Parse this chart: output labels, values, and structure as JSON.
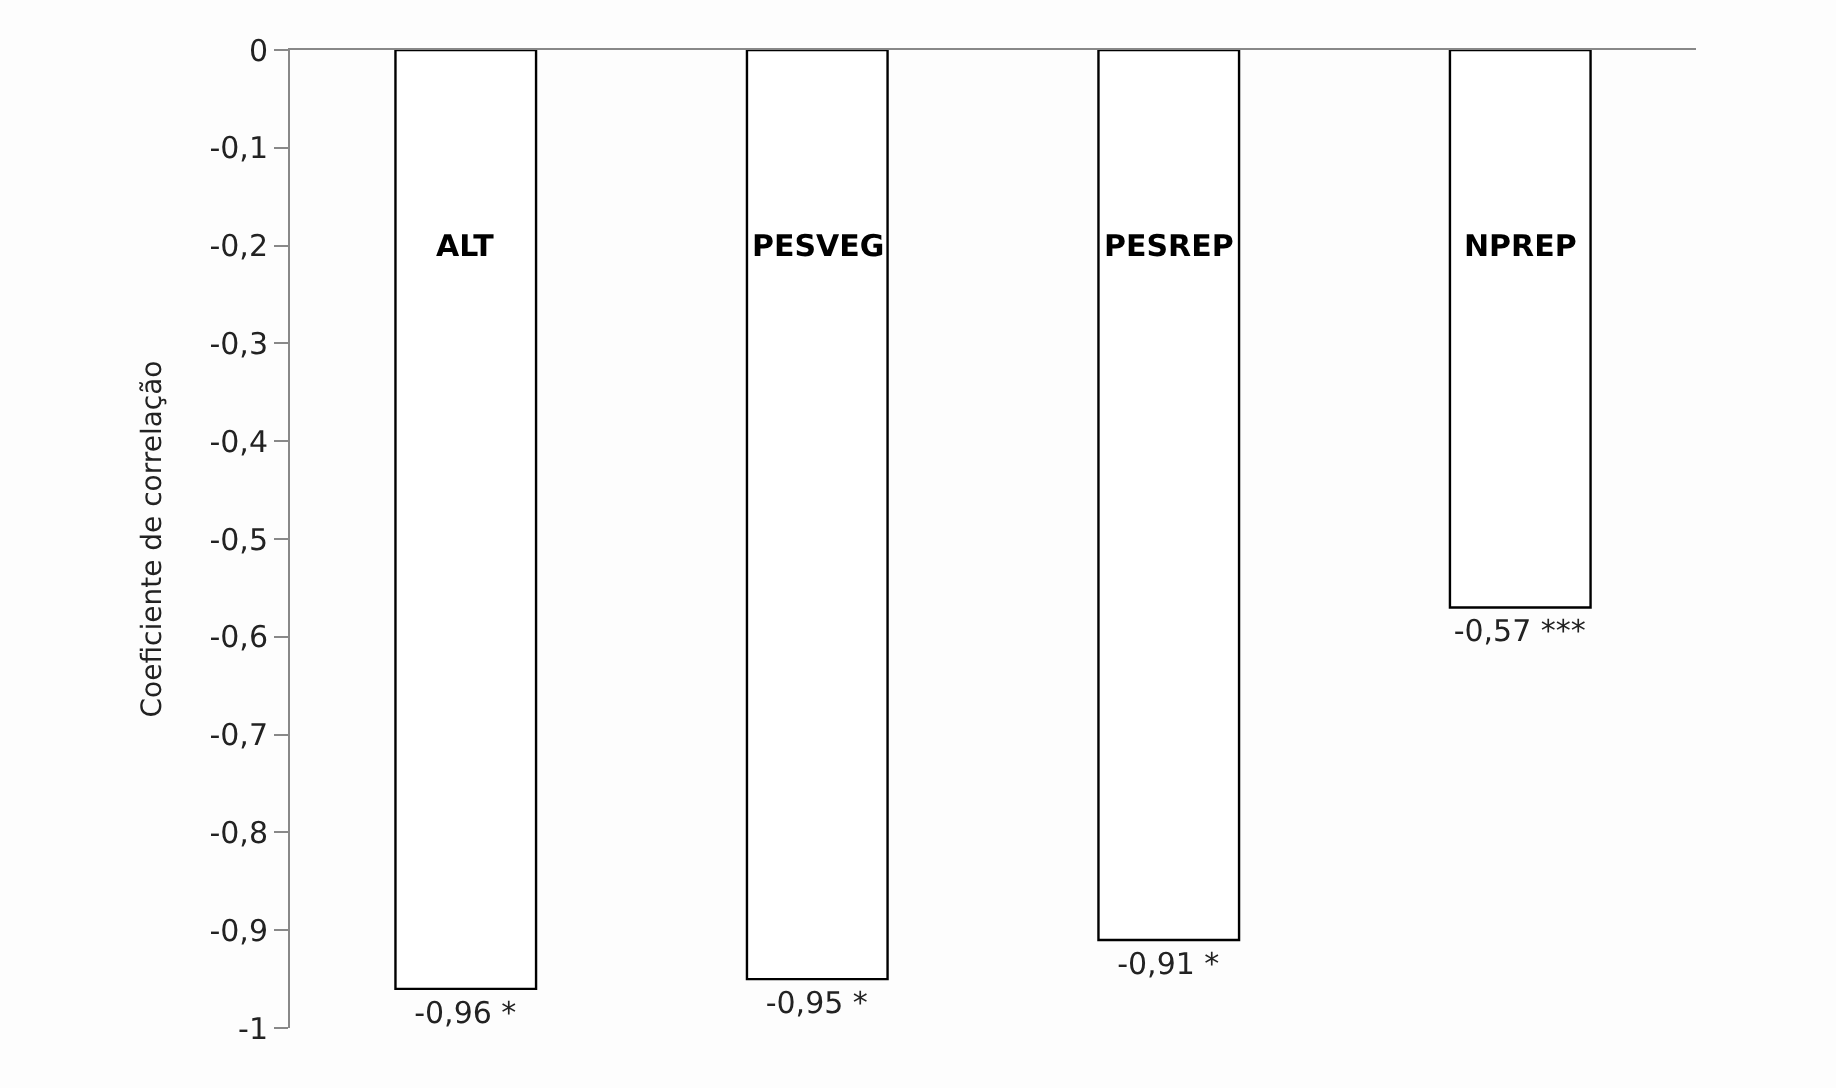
{
  "chart_data": {
    "type": "bar",
    "ylabel": "Coeficiente de correlação",
    "categories": [
      "ALT",
      "PESVEG",
      "PESREP",
      "NPREP"
    ],
    "values": [
      -0.96,
      -0.95,
      -0.91,
      -0.57
    ],
    "value_labels": [
      "-0,96 *",
      "-0,95 *",
      "-0,91 *",
      "-0,57 ***"
    ],
    "color": "#ffffff",
    "ylim": [
      -1,
      0
    ],
    "yticks": [
      {
        "value": -1,
        "label": "-1"
      },
      {
        "value": -0.9,
        "label": "-0,9"
      },
      {
        "value": -0.8,
        "label": "-0,8"
      },
      {
        "value": -0.7,
        "label": "-0,7"
      },
      {
        "value": -0.6,
        "label": "-0,6"
      },
      {
        "value": -0.5,
        "label": "-0,5"
      },
      {
        "value": -0.4,
        "label": "-0,4"
      },
      {
        "value": -0.3,
        "label": "-0,3"
      },
      {
        "value": -0.2,
        "label": "-0,2"
      },
      {
        "value": -0.1,
        "label": "-0,1"
      },
      {
        "value": 0,
        "label": "0"
      }
    ],
    "grid": false,
    "legend": false
  }
}
